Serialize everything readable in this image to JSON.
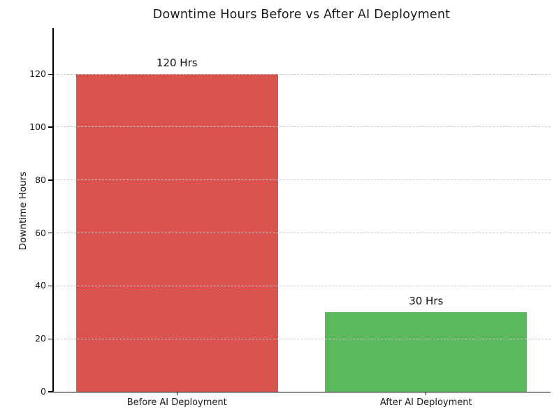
{
  "chart_data": {
    "type": "bar",
    "title": "Downtime Hours Before vs After AI Deployment",
    "categories": [
      "Before AI Deployment",
      "After AI Deployment"
    ],
    "values": [
      120,
      30
    ],
    "bar_value_labels": [
      "120 Hrs",
      "30 Hrs"
    ],
    "bar_colors": [
      "#d9534f",
      "#5cb85c"
    ],
    "xlabel": "",
    "ylabel": "Downtime Hours",
    "ylim": [
      0,
      137.5
    ],
    "yticks": [
      0,
      20,
      40,
      60,
      80,
      100,
      120
    ],
    "grid": "horizontal dashed gridlines drawn over bars",
    "legend": "none"
  },
  "colors": {
    "background": "#ffffff",
    "axis": "#000000",
    "gridline": "#c9c9c9",
    "title_text": "#1b1b1b",
    "tick_text": "#1a1a1a"
  }
}
